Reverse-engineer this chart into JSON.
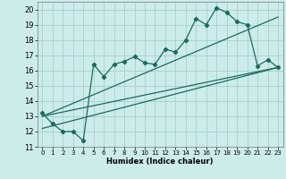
{
  "xlabel": "Humidex (Indice chaleur)",
  "bg_color": "#ccecea",
  "grid_color": "#aad4cf",
  "line_color": "#1a6b5a",
  "xlim": [
    -0.5,
    23.5
  ],
  "ylim": [
    11,
    20.5
  ],
  "x_ticks": [
    0,
    1,
    2,
    3,
    4,
    5,
    6,
    7,
    8,
    9,
    10,
    11,
    12,
    13,
    14,
    15,
    16,
    17,
    18,
    19,
    20,
    21,
    22,
    23
  ],
  "y_ticks": [
    11,
    12,
    13,
    14,
    15,
    16,
    17,
    18,
    19,
    20
  ],
  "scatter_x": [
    0,
    1,
    2,
    3,
    4,
    5,
    6,
    7,
    8,
    9,
    10,
    11,
    12,
    13,
    14,
    15,
    16,
    17,
    18,
    19,
    20,
    21,
    22,
    23
  ],
  "scatter_y": [
    13.2,
    12.5,
    12.0,
    12.0,
    11.4,
    16.4,
    15.6,
    16.4,
    16.6,
    16.9,
    16.5,
    16.4,
    17.4,
    17.2,
    18.0,
    19.4,
    19.0,
    20.1,
    19.8,
    19.2,
    19.0,
    16.3,
    16.7,
    16.2
  ],
  "line1_x": [
    0,
    23
  ],
  "line1_y": [
    13.0,
    16.2
  ],
  "line2_x": [
    0,
    23
  ],
  "line2_y": [
    12.2,
    16.2
  ],
  "line3_x": [
    0,
    23
  ],
  "line3_y": [
    13.0,
    19.5
  ]
}
